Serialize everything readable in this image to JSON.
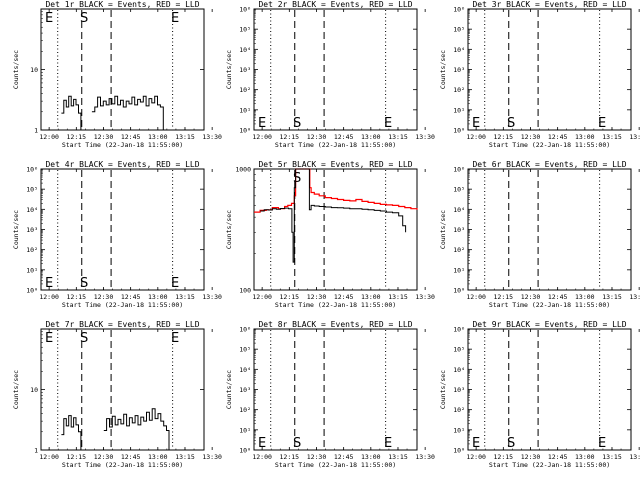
{
  "figure": {
    "xlabel": "Start Time (22-Jan-18 11:55:00)",
    "ylabel": "Counts/sec",
    "x_ticks": [
      "12:00",
      "12:15",
      "12:30",
      "12:45",
      "13:00",
      "13:15",
      "13:30"
    ],
    "marker_S": "S",
    "marker_E": "E",
    "colors": {
      "events": "#000000",
      "lld": "#ff0000"
    }
  },
  "chart_data": [
    {
      "id": "det1r",
      "title": "Det 1r BLACK = Events, RED = LLD",
      "type": "line",
      "log_y": true,
      "yrange": [
        1,
        100
      ],
      "y_ticks": [
        "1",
        "10"
      ],
      "xrange_minutes": [
        -2,
        38
      ],
      "lines": [
        {
          "t": 2.1,
          "style": "dotted"
        },
        {
          "t": 8.0,
          "style": "dashed"
        },
        {
          "t": 15.2,
          "style": "dashed"
        },
        {
          "t": 30.3,
          "style": "dotted"
        }
      ],
      "markers": [
        {
          "label": "E",
          "t": 0.0,
          "pos": "top"
        },
        {
          "label": "S",
          "t": 8.6,
          "pos": "top"
        },
        {
          "label": "E",
          "t": 30.9,
          "pos": "top"
        }
      ],
      "series": [
        {
          "role": "events",
          "color": "#000000",
          "segments": [
            {
              "t": [
                3,
                3.6,
                4.2,
                4.8,
                5.4,
                6,
                6.6,
                7.2,
                7.8
              ],
              "v": [
                1.9,
                3.1,
                2.4,
                3.6,
                2.5,
                3.2,
                2.6,
                1.9,
                1.0
              ]
            },
            {
              "t": [
                10.5,
                11.2,
                11.9,
                12.6,
                13.3,
                14,
                14.7,
                15.4,
                16.1,
                16.8,
                17.5,
                18.2,
                18.9,
                19.6,
                20.3,
                21,
                21.7,
                22.4,
                23.1,
                23.8,
                24.5,
                25.2,
                25.9,
                26.6,
                27.3,
                28
              ],
              "v": [
                2.0,
                2.4,
                3.5,
                2.5,
                3.0,
                2.6,
                3.3,
                2.7,
                3.6,
                2.6,
                3.1,
                2.4,
                3.0,
                2.7,
                3.5,
                2.6,
                3.2,
                2.9,
                3.6,
                2.5,
                3.3,
                2.8,
                3.6,
                2.6,
                2.4,
                1.0
              ]
            }
          ]
        }
      ]
    },
    {
      "id": "det2r",
      "title": "Det 2r BLACK = Events, RED = LLD",
      "type": "line",
      "log_y": true,
      "yrange": [
        1,
        1000000
      ],
      "y_ticks": [
        "10⁰",
        "10¹",
        "10²",
        "10³",
        "10⁴",
        "10⁵",
        "10⁶"
      ],
      "xrange_minutes": [
        -2,
        38
      ],
      "lines": [
        {
          "t": 2.1,
          "style": "dotted"
        },
        {
          "t": 8.0,
          "style": "dashed"
        },
        {
          "t": 15.2,
          "style": "dashed"
        },
        {
          "t": 30.3,
          "style": "dotted"
        }
      ],
      "markers": [
        {
          "label": "E",
          "t": 0.0,
          "pos": "bottom"
        },
        {
          "label": "S",
          "t": 8.6,
          "pos": "bottom"
        },
        {
          "label": "E",
          "t": 30.9,
          "pos": "bottom"
        }
      ],
      "series": []
    },
    {
      "id": "det3r",
      "title": "Det 3r BLACK = Events, RED = LLD",
      "type": "line",
      "log_y": true,
      "yrange": [
        1,
        1000000
      ],
      "y_ticks": [
        "10⁰",
        "10¹",
        "10²",
        "10³",
        "10⁴",
        "10⁵",
        "10⁶"
      ],
      "xrange_minutes": [
        -2,
        38
      ],
      "lines": [
        {
          "t": 2.1,
          "style": "dotted"
        },
        {
          "t": 8.0,
          "style": "dashed"
        },
        {
          "t": 15.2,
          "style": "dashed"
        },
        {
          "t": 30.3,
          "style": "dotted"
        }
      ],
      "markers": [
        {
          "label": "E",
          "t": 0.0,
          "pos": "bottom"
        },
        {
          "label": "S",
          "t": 8.6,
          "pos": "bottom"
        },
        {
          "label": "E",
          "t": 30.9,
          "pos": "bottom"
        }
      ],
      "series": []
    },
    {
      "id": "det4r",
      "title": "Det 4r BLACK = Events, RED = LLD",
      "type": "line",
      "log_y": true,
      "yrange": [
        1,
        1000000
      ],
      "y_ticks": [
        "10⁰",
        "10¹",
        "10²",
        "10³",
        "10⁴",
        "10⁵",
        "10⁶"
      ],
      "xrange_minutes": [
        -2,
        38
      ],
      "lines": [
        {
          "t": 2.1,
          "style": "dotted"
        },
        {
          "t": 8.0,
          "style": "dashed"
        },
        {
          "t": 15.2,
          "style": "dashed"
        },
        {
          "t": 30.3,
          "style": "dotted"
        }
      ],
      "markers": [
        {
          "label": "E",
          "t": 0.0,
          "pos": "bottom"
        },
        {
          "label": "S",
          "t": 8.6,
          "pos": "bottom"
        },
        {
          "label": "E",
          "t": 30.9,
          "pos": "bottom"
        }
      ],
      "series": []
    },
    {
      "id": "det5r",
      "title": "Det 5r BLACK = Events, RED = LLD",
      "type": "line",
      "log_y": true,
      "yrange": [
        100,
        1000
      ],
      "y_ticks": [
        "100",
        "1000"
      ],
      "xrange_minutes": [
        -2,
        38
      ],
      "lines": [
        {
          "t": 2.1,
          "style": "dotted"
        },
        {
          "t": 8.0,
          "style": "dashed"
        },
        {
          "t": 15.2,
          "style": "dashed"
        },
        {
          "t": 30.3,
          "style": "dotted"
        }
      ],
      "markers": [
        {
          "label": "S",
          "t": 8.6,
          "pos": "top"
        }
      ],
      "series": [
        {
          "role": "lld",
          "color": "#ff0000",
          "segments": [
            {
              "t": [
                -2,
                -0.5,
                1,
                2.5,
                4,
                5.5,
                6.3,
                7.2,
                7.9,
                8.2,
                8.5,
                8.9,
                9.5,
                10.2,
                10.8,
                11.4,
                11.7,
                12,
                12.8,
                14,
                15.5,
                17,
                18.5,
                20,
                21.5,
                23,
                24.5,
                26,
                27.5,
                29,
                30.5,
                32,
                33.5,
                35,
                36.5,
                38
              ],
              "v": [
                440,
                455,
                460,
                480,
                470,
                490,
                500,
                520,
                600,
                1000,
                1000,
                1000,
                1000,
                1000,
                1000,
                1000,
                700,
                640,
                620,
                600,
                580,
                570,
                560,
                550,
                545,
                560,
                540,
                530,
                520,
                510,
                505,
                500,
                490,
                480,
                470,
                460
              ]
            }
          ]
        },
        {
          "role": "events",
          "color": "#000000",
          "segments": [
            {
              "t": [
                -0.5,
                0.5,
                1.5,
                2.5,
                3.5,
                4.5,
                5.5,
                6.5,
                7.3,
                7.6,
                7.9,
                8.2,
                8.5,
                8.9,
                9.5,
                10.2,
                10.8,
                11.3,
                11.6,
                12,
                12.8,
                14,
                15.5,
                17,
                18.5,
                20,
                21.5,
                23,
                24.5,
                26,
                27.5,
                29,
                30.5,
                32,
                33.5,
                34.5,
                35.2
              ],
              "v": [
                450,
                460,
                458,
                470,
                465,
                472,
                475,
                470,
                300,
                170,
                700,
                1000,
                1000,
                1000,
                1000,
                1000,
                1000,
                1000,
                460,
                500,
                495,
                490,
                485,
                480,
                478,
                475,
                470,
                470,
                465,
                460,
                455,
                450,
                440,
                435,
                410,
                340,
                300
              ]
            }
          ]
        }
      ]
    },
    {
      "id": "det6r",
      "title": "Det 6r BLACK = Events, RED = LLD",
      "type": "line",
      "log_y": true,
      "yrange": [
        1,
        1000000
      ],
      "y_ticks": [
        "10⁰",
        "10¹",
        "10²",
        "10³",
        "10⁴",
        "10⁵",
        "10⁶"
      ],
      "xrange_minutes": [
        -2,
        38
      ],
      "lines": [
        {
          "t": 2.1,
          "style": "dotted"
        },
        {
          "t": 8.0,
          "style": "dashed"
        },
        {
          "t": 15.2,
          "style": "dashed"
        },
        {
          "t": 30.3,
          "style": "dotted"
        }
      ],
      "markers": [],
      "series": []
    },
    {
      "id": "det7r",
      "title": "Det 7r BLACK = Events, RED = LLD",
      "type": "line",
      "log_y": true,
      "yrange": [
        1,
        100
      ],
      "y_ticks": [
        "1",
        "10"
      ],
      "xrange_minutes": [
        -2,
        38
      ],
      "lines": [
        {
          "t": 2.1,
          "style": "dotted"
        },
        {
          "t": 8.0,
          "style": "dashed"
        },
        {
          "t": 15.2,
          "style": "dashed"
        },
        {
          "t": 30.3,
          "style": "dotted"
        }
      ],
      "markers": [
        {
          "label": "E",
          "t": 0.0,
          "pos": "top"
        },
        {
          "label": "S",
          "t": 8.6,
          "pos": "top"
        },
        {
          "label": "E",
          "t": 30.9,
          "pos": "top"
        }
      ],
      "series": [
        {
          "role": "events",
          "color": "#000000",
          "segments": [
            {
              "t": [
                3,
                3.6,
                4.2,
                4.8,
                5.4,
                6,
                6.6,
                7.2,
                7.8
              ],
              "v": [
                1.8,
                3.3,
                2.5,
                3.7,
                2.4,
                3.4,
                2.6,
                2.0,
                1.0
              ]
            },
            {
              "t": [
                13.4,
                14.1,
                14.8,
                15.5,
                16.2,
                16.9,
                17.6,
                18.3,
                19,
                19.7,
                20.4,
                21.1,
                21.8,
                22.5,
                23.2,
                23.9,
                24.6,
                25.3,
                26,
                26.7,
                27.4,
                28.1,
                28.8,
                29.4
              ],
              "v": [
                2.1,
                3.3,
                2.4,
                3.6,
                2.6,
                3.2,
                2.7,
                3.9,
                2.5,
                3.4,
                2.8,
                3.7,
                2.6,
                3.5,
                3.0,
                4.2,
                3.1,
                4.8,
                3.3,
                4.0,
                3.0,
                2.5,
                2.1,
                1.0
              ]
            }
          ]
        }
      ]
    },
    {
      "id": "det8r",
      "title": "Det 8r BLACK = Events, RED = LLD",
      "type": "line",
      "log_y": true,
      "yrange": [
        1,
        1000000
      ],
      "y_ticks": [
        "10⁰",
        "10¹",
        "10²",
        "10³",
        "10⁴",
        "10⁵",
        "10⁶"
      ],
      "xrange_minutes": [
        -2,
        38
      ],
      "lines": [
        {
          "t": 2.1,
          "style": "dotted"
        },
        {
          "t": 8.0,
          "style": "dashed"
        },
        {
          "t": 15.2,
          "style": "dashed"
        },
        {
          "t": 30.3,
          "style": "dotted"
        }
      ],
      "markers": [
        {
          "label": "E",
          "t": 0.0,
          "pos": "bottom"
        },
        {
          "label": "S",
          "t": 8.6,
          "pos": "bottom"
        },
        {
          "label": "E",
          "t": 30.9,
          "pos": "bottom"
        }
      ],
      "series": []
    },
    {
      "id": "det9r",
      "title": "Det 9r BLACK = Events, RED = LLD",
      "type": "line",
      "log_y": true,
      "yrange": [
        1,
        1000000
      ],
      "y_ticks": [
        "10⁰",
        "10¹",
        "10²",
        "10³",
        "10⁴",
        "10⁵",
        "10⁶"
      ],
      "xrange_minutes": [
        -2,
        38
      ],
      "lines": [
        {
          "t": 2.1,
          "style": "dotted"
        },
        {
          "t": 8.0,
          "style": "dashed"
        },
        {
          "t": 15.2,
          "style": "dashed"
        },
        {
          "t": 30.3,
          "style": "dotted"
        }
      ],
      "markers": [
        {
          "label": "E",
          "t": 0.0,
          "pos": "bottom"
        },
        {
          "label": "S",
          "t": 8.6,
          "pos": "bottom"
        },
        {
          "label": "E",
          "t": 30.9,
          "pos": "bottom"
        }
      ],
      "series": []
    }
  ]
}
